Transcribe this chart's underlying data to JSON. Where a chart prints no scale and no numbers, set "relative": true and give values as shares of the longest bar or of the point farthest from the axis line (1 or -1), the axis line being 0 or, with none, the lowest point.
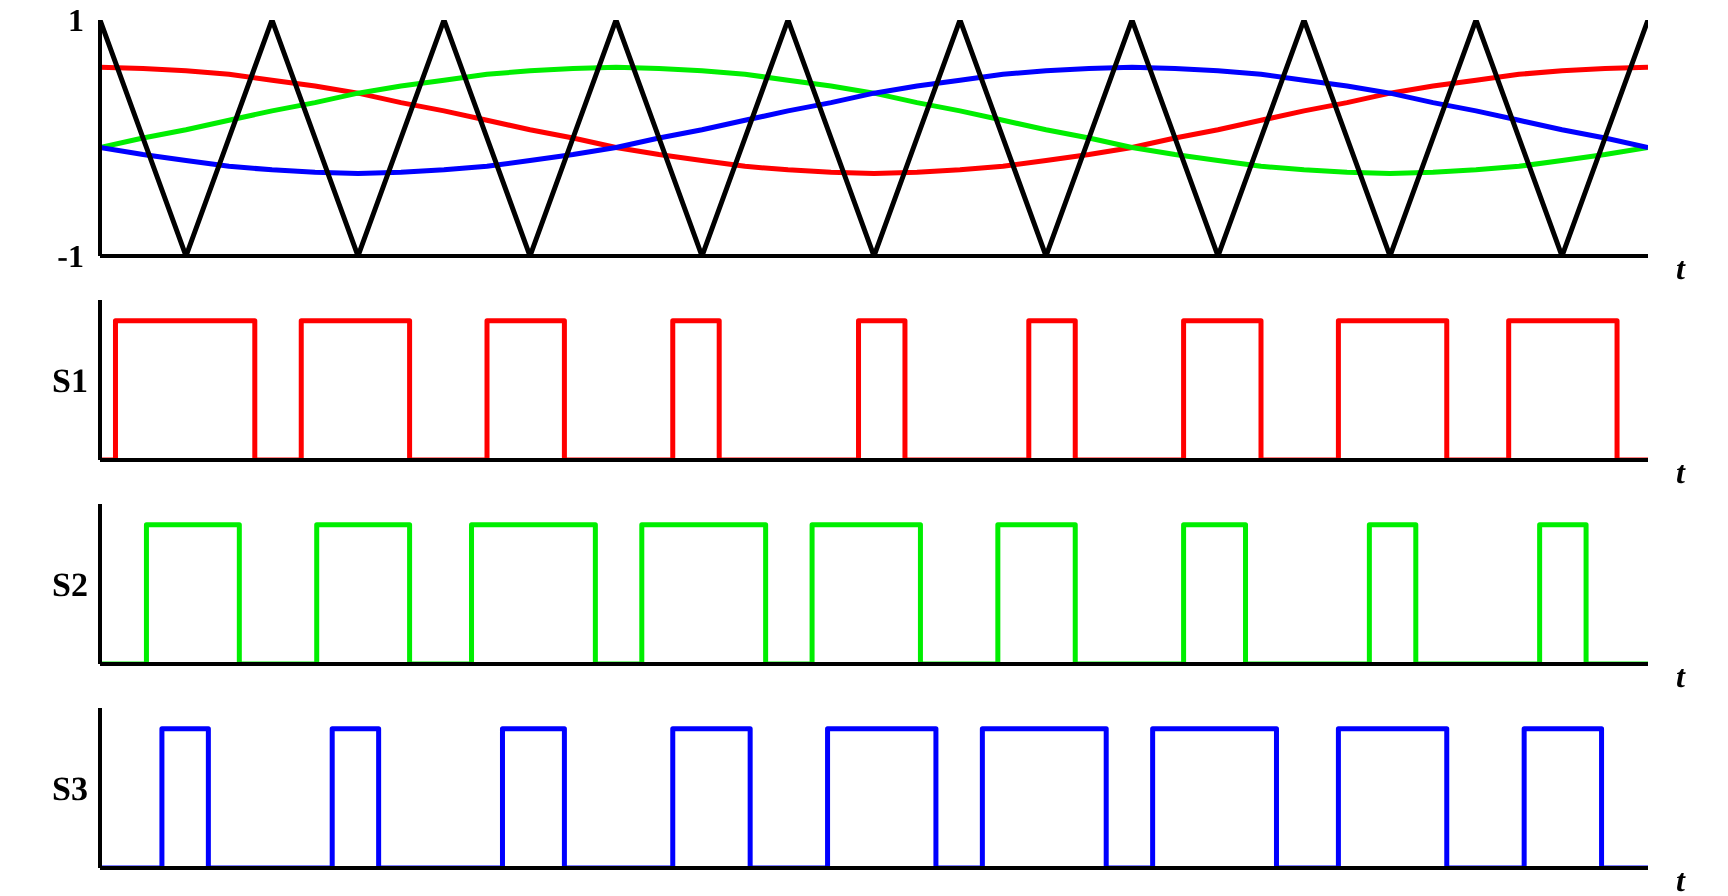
{
  "chart_data": [
    {
      "type": "line",
      "xlabel": "t",
      "categories": [
        null,
        null,
        null,
        null,
        null,
        null,
        null,
        null,
        null,
        null,
        null,
        null,
        null,
        null,
        null,
        null,
        null,
        null,
        null,
        null,
        null,
        null,
        null,
        null,
        null,
        null,
        null,
        null,
        null,
        null,
        null,
        null,
        null,
        null,
        null,
        null,
        null
      ],
      "ylim": [
        -1,
        1
      ],
      "yticks": [
        -1,
        1
      ],
      "tick_labels": "y",
      "series": [
        {
          "color": "#ff0000",
          "values": [
            0.6,
            0.59,
            0.57,
            0.54,
            0.49,
            0.44,
            0.38,
            0.3,
            0.23,
            0.15,
            0.07,
            0,
            -0.08,
            -0.14,
            -0.19,
            -0.24,
            -0.27,
            -0.29,
            -0.3,
            -0.29,
            -0.27,
            -0.24,
            -0.19,
            -0.14,
            -0.08,
            0,
            0.07,
            0.15,
            0.23,
            0.3,
            0.38,
            0.44,
            0.49,
            0.54,
            0.57,
            0.59,
            0.6
          ]
        },
        {
          "color": "#00ee00",
          "values": [
            -0.08,
            0,
            0.07,
            0.15,
            0.23,
            0.3,
            0.38,
            0.44,
            0.49,
            0.54,
            0.57,
            0.59,
            0.6,
            0.59,
            0.57,
            0.54,
            0.49,
            0.44,
            0.38,
            0.3,
            0.23,
            0.15,
            0.07,
            0,
            -0.08,
            -0.14,
            -0.19,
            -0.24,
            -0.27,
            -0.29,
            -0.3,
            -0.29,
            -0.27,
            -0.24,
            -0.19,
            -0.14,
            -0.08
          ]
        },
        {
          "color": "#0000ff",
          "values": [
            -0.08,
            -0.14,
            -0.19,
            -0.24,
            -0.27,
            -0.29,
            -0.3,
            -0.29,
            -0.27,
            -0.24,
            -0.19,
            -0.14,
            -0.08,
            0,
            0.07,
            0.15,
            0.23,
            0.3,
            0.38,
            0.44,
            0.49,
            0.54,
            0.57,
            0.59,
            0.6,
            0.59,
            0.57,
            0.54,
            0.49,
            0.44,
            0.38,
            0.3,
            0.23,
            0.15,
            0.07,
            0,
            -0.08
          ]
        },
        {
          "color": "#000000",
          "values": [
            1,
            0,
            -1,
            0,
            1,
            0,
            -1,
            0,
            1,
            0,
            -1,
            0,
            1,
            0,
            -1,
            0,
            1,
            0,
            -1,
            0,
            1,
            0,
            -1,
            0,
            1,
            0,
            -1,
            0,
            1,
            0,
            -1,
            0,
            1,
            0,
            -1,
            0,
            1
          ]
        }
      ]
    },
    {
      "type": "step",
      "ylabel": "S1",
      "xlabel": "t",
      "categories": [
        null,
        null,
        null,
        null,
        null,
        null,
        null,
        null,
        null,
        null,
        null,
        null,
        null,
        null,
        null,
        null,
        null,
        null,
        null,
        null,
        null,
        null,
        null,
        null,
        null,
        null,
        null,
        null,
        null,
        null,
        null,
        null,
        null,
        null,
        null,
        null,
        null,
        null,
        null,
        null,
        null,
        null,
        null,
        null,
        null,
        null,
        null,
        null,
        null,
        null,
        null,
        null,
        null,
        null,
        null,
        null,
        null,
        null,
        null,
        null,
        null,
        null,
        null,
        null,
        null,
        null,
        null,
        null,
        null,
        null,
        null,
        null,
        null,
        null,
        null,
        null,
        null,
        null,
        null,
        null,
        null,
        null,
        null,
        null,
        null,
        null,
        null,
        null,
        null,
        null,
        null,
        null,
        null,
        null,
        null,
        null,
        null,
        null,
        null,
        null,
        null
      ],
      "relative": true,
      "tick_labels": false,
      "series": [
        {
          "color": "#ff0000",
          "values": [
            0,
            1,
            1,
            1,
            1,
            1,
            1,
            1,
            1,
            1,
            0,
            0,
            0,
            1,
            1,
            1,
            1,
            1,
            1,
            1,
            0,
            0,
            0,
            0,
            0,
            1,
            1,
            1,
            1,
            1,
            0,
            0,
            0,
            0,
            0,
            0,
            0,
            1,
            1,
            1,
            0,
            0,
            0,
            0,
            0,
            0,
            0,
            0,
            0,
            1,
            1,
            1,
            0,
            0,
            0,
            0,
            0,
            0,
            0,
            0,
            1,
            1,
            1,
            0,
            0,
            0,
            0,
            0,
            0,
            0,
            1,
            1,
            1,
            1,
            1,
            0,
            0,
            0,
            0,
            0,
            1,
            1,
            1,
            1,
            1,
            1,
            1,
            0,
            0,
            0,
            0,
            1,
            1,
            1,
            1,
            1,
            1,
            1,
            0,
            0,
            0
          ]
        }
      ]
    },
    {
      "type": "step",
      "ylabel": "S2",
      "xlabel": "t",
      "categories": [
        null,
        null,
        null,
        null,
        null,
        null,
        null,
        null,
        null,
        null,
        null,
        null,
        null,
        null,
        null,
        null,
        null,
        null,
        null,
        null,
        null,
        null,
        null,
        null,
        null,
        null,
        null,
        null,
        null,
        null,
        null,
        null,
        null,
        null,
        null,
        null,
        null,
        null,
        null,
        null,
        null,
        null,
        null,
        null,
        null,
        null,
        null,
        null,
        null,
        null,
        null,
        null,
        null,
        null,
        null,
        null,
        null,
        null,
        null,
        null,
        null,
        null,
        null,
        null,
        null,
        null,
        null,
        null,
        null,
        null,
        null,
        null,
        null,
        null,
        null,
        null,
        null,
        null,
        null,
        null,
        null,
        null,
        null,
        null,
        null,
        null,
        null,
        null,
        null,
        null,
        null,
        null,
        null,
        null,
        null,
        null,
        null,
        null,
        null,
        null,
        null
      ],
      "relative": true,
      "tick_labels": false,
      "series": [
        {
          "color": "#00ee00",
          "values": [
            0,
            0,
            0,
            1,
            1,
            1,
            1,
            1,
            1,
            0,
            0,
            0,
            0,
            0,
            1,
            1,
            1,
            1,
            1,
            1,
            0,
            0,
            0,
            0,
            1,
            1,
            1,
            1,
            1,
            1,
            1,
            1,
            0,
            0,
            0,
            1,
            1,
            1,
            1,
            1,
            1,
            1,
            1,
            0,
            0,
            0,
            1,
            1,
            1,
            1,
            1,
            1,
            1,
            0,
            0,
            0,
            0,
            0,
            1,
            1,
            1,
            1,
            1,
            0,
            0,
            0,
            0,
            0,
            0,
            0,
            1,
            1,
            1,
            1,
            0,
            0,
            0,
            0,
            0,
            0,
            0,
            0,
            1,
            1,
            1,
            0,
            0,
            0,
            0,
            0,
            0,
            0,
            0,
            1,
            1,
            1,
            0,
            0,
            0,
            0,
            0
          ]
        }
      ]
    },
    {
      "type": "step",
      "ylabel": "S3",
      "xlabel": "t",
      "categories": [
        null,
        null,
        null,
        null,
        null,
        null,
        null,
        null,
        null,
        null,
        null,
        null,
        null,
        null,
        null,
        null,
        null,
        null,
        null,
        null,
        null,
        null,
        null,
        null,
        null,
        null,
        null,
        null,
        null,
        null,
        null,
        null,
        null,
        null,
        null,
        null,
        null,
        null,
        null,
        null,
        null,
        null,
        null,
        null,
        null,
        null,
        null,
        null,
        null,
        null,
        null,
        null,
        null,
        null,
        null,
        null,
        null,
        null,
        null,
        null,
        null,
        null,
        null,
        null,
        null,
        null,
        null,
        null,
        null,
        null,
        null,
        null,
        null,
        null,
        null,
        null,
        null,
        null,
        null,
        null,
        null,
        null,
        null,
        null,
        null,
        null,
        null,
        null,
        null,
        null,
        null,
        null,
        null,
        null,
        null,
        null,
        null,
        null,
        null,
        null,
        null
      ],
      "relative": true,
      "tick_labels": false,
      "series": [
        {
          "color": "#0000ff",
          "values": [
            0,
            0,
            0,
            0,
            1,
            1,
            1,
            0,
            0,
            0,
            0,
            0,
            0,
            0,
            0,
            1,
            1,
            1,
            0,
            0,
            0,
            0,
            0,
            0,
            0,
            0,
            1,
            1,
            1,
            1,
            0,
            0,
            0,
            0,
            0,
            0,
            0,
            1,
            1,
            1,
            1,
            1,
            0,
            0,
            0,
            0,
            0,
            1,
            1,
            1,
            1,
            1,
            1,
            1,
            0,
            0,
            0,
            1,
            1,
            1,
            1,
            1,
            1,
            1,
            1,
            0,
            0,
            0,
            1,
            1,
            1,
            1,
            1,
            1,
            1,
            1,
            0,
            0,
            0,
            0,
            1,
            1,
            1,
            1,
            1,
            1,
            1,
            0,
            0,
            0,
            0,
            0,
            1,
            1,
            1,
            1,
            1,
            0,
            0,
            0,
            0
          ]
        }
      ]
    }
  ]
}
